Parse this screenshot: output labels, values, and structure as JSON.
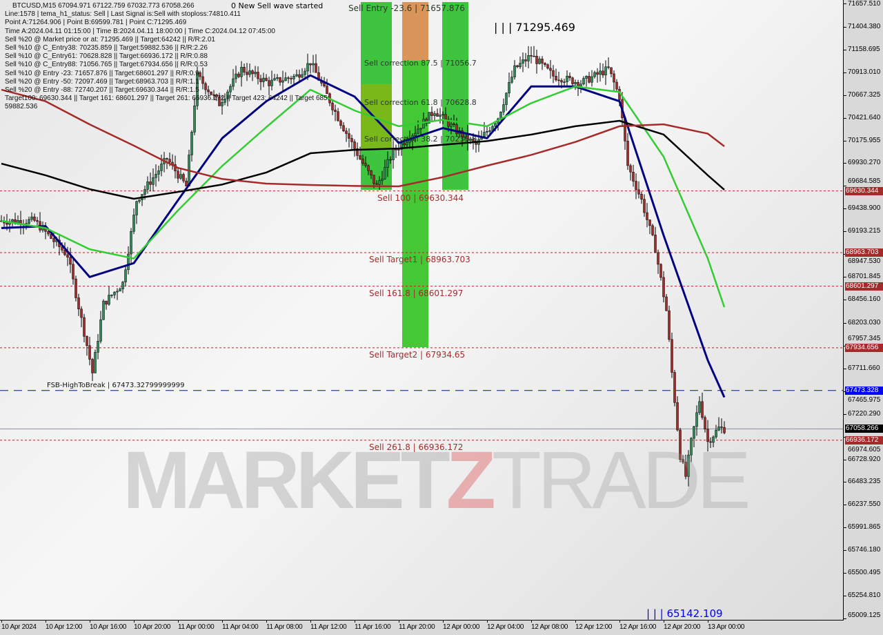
{
  "header": {
    "symbol_line": "BTCUSD,M15  67094.971 67122.759 67032.773 67058.266",
    "info_lines": [
      "Line:1578 | tema_h1_status: Sell | Last Signal is:Sell with stoploss:74810.411",
      "Point A:71264.906 | Point B:69599.781 | Point C:71295.469",
      "Time A:2024.04.11 01:15:00 | Time B:2024.04.11 18:00:00 | Time C:2024.04.12 07:45:00",
      "Sell %20 @ Market price or at: 71295.469 || Target:64242 || R/R:2.01",
      "Sell %10 @ C_Entry38: 70235.859 || Target:59882.536 || R/R:2.26",
      "Sell %10 @ C_Entry61: 70628.828 || Target:66936.172 || R/R:0.88",
      "Sell %10 @ C_Entry88: 71056.765 || Target:67934.656 || R/R:0.53",
      "Sell %10 @ Entry -23: 71657.876 || Target:68601.297 || R/R:0.9",
      "Sell %20 @ Entry -50: 72097.469 || Target:68963.703 || R/R:1.1",
      "Sell %20 @ Entry -88: 72740.207 || Target:69630.344 || R/R:1.5",
      "Target100: 69630.344 || Target 161: 68601.297 || Target 261: 66936.172 || Target 423: 64242 || Target 685: 59882.536"
    ],
    "wave_text": "0 New Sell wave started"
  },
  "watermark": {
    "part1": "MARKET",
    "part2": "Z",
    "part3": "TRADE"
  },
  "annotations": {
    "sell_entry": "Sell Entry -23.6 | 71657.876",
    "corr_875": "Sell correction 87.5 | 71056.7",
    "corr_618": "Sell correction 61.8 | 70628.8",
    "corr_382": "Sell correction 38.2 | 70235.8",
    "point_c": "| | | 71295.469",
    "low": "| | | 65142.109",
    "fsb": "FSB-HighToBreak | 67473.32799999999"
  },
  "colors": {
    "level": "#a52a2a",
    "fsb": "#0000ff",
    "tema": "#000080",
    "ma_green": "#33cc33",
    "ma_black": "#000000",
    "ma_brown": "#a52a2a",
    "bull": "#2e8b57",
    "bear": "#a52a2a",
    "zone_green": "#33c233",
    "zone_orange": "#d9955a"
  },
  "chart_data": {
    "type": "candlestick",
    "title": "BTCUSD,M15",
    "ylim": [
      65009.125,
      71657.51
    ],
    "y_ticks": [
      "71657.510",
      "71404.380",
      "71158.695",
      "70913.010",
      "70667.325",
      "70421.640",
      "70175.955",
      "69930.270",
      "69684.585",
      "69438.900",
      "69193.215",
      "68947.530",
      "68701.845",
      "68456.160",
      "68203.030",
      "67957.345",
      "67711.660",
      "67465.975",
      "67220.290",
      "66974.605",
      "66728.920",
      "66483.235",
      "66237.550",
      "65991.865",
      "65746.180",
      "65500.495",
      "65254.810",
      "65009.125"
    ],
    "x_ticks": [
      "10 Apr 2024",
      "10 Apr 12:00",
      "10 Apr 16:00",
      "10 Apr 20:00",
      "11 Apr 00:00",
      "11 Apr 04:00",
      "11 Apr 08:00",
      "11 Apr 12:00",
      "11 Apr 16:00",
      "11 Apr 20:00",
      "12 Apr 00:00",
      "12 Apr 04:00",
      "12 Apr 08:00",
      "12 Apr 12:00",
      "12 Apr 16:00",
      "12 Apr 20:00",
      "13 Apr 00:00"
    ],
    "x_tick_times": [
      "2024-04-10 08:00",
      "2024-04-10 12:00",
      "2024-04-10 16:00",
      "2024-04-10 20:00",
      "2024-04-11 00:00",
      "2024-04-11 04:00",
      "2024-04-11 08:00",
      "2024-04-11 12:00",
      "2024-04-11 16:00",
      "2024-04-11 20:00",
      "2024-04-12 00:00",
      "2024-04-12 04:00",
      "2024-04-12 08:00",
      "2024-04-12 12:00",
      "2024-04-12 16:00",
      "2024-04-12 20:00",
      "2024-04-13 00:00"
    ],
    "price": {
      "x": [
        "2024-04-10 08:00",
        "2024-04-10 11:00",
        "2024-04-10 14:00",
        "2024-04-10 15:45",
        "2024-04-10 16:15",
        "2024-04-10 17:15",
        "2024-04-10 19:00",
        "2024-04-10 20:15",
        "2024-04-10 23:00",
        "2024-04-11 00:45",
        "2024-04-11 01:45",
        "2024-04-11 03:45",
        "2024-04-11 05:45",
        "2024-04-11 08:15",
        "2024-04-11 10:45",
        "2024-04-11 12:00",
        "2024-04-11 14:30",
        "2024-04-11 16:30",
        "2024-04-11 18:00",
        "2024-04-11 19:30",
        "2024-04-11 21:30",
        "2024-04-11 23:15",
        "2024-04-12 01:15",
        "2024-04-12 03:00",
        "2024-04-12 05:00",
        "2024-04-12 06:30",
        "2024-04-12 08:00",
        "2024-04-12 10:00",
        "2024-04-12 12:30",
        "2024-04-12 15:00",
        "2024-04-12 16:00",
        "2024-04-12 16:45",
        "2024-04-12 18:00",
        "2024-04-12 19:15",
        "2024-04-12 20:15",
        "2024-04-12 20:45",
        "2024-04-12 21:30",
        "2024-04-12 22:00",
        "2024-04-12 22:30",
        "2024-04-12 23:15",
        "2024-04-13 00:00",
        "2024-04-13 01:00",
        "2024-04-13 01:30"
      ],
      "y": [
        69307,
        69307,
        68934,
        67964,
        67665,
        68411,
        68635,
        69530,
        69979,
        69680,
        70874,
        70575,
        70949,
        70799,
        70874,
        71023,
        70426,
        69979,
        69680,
        70053,
        70277,
        70501,
        70277,
        70128,
        70426,
        70949,
        71098,
        70874,
        70799,
        70949,
        70650,
        69904,
        69530,
        69008,
        68337,
        67665,
        66770,
        66546,
        66919,
        67367,
        66919,
        67068,
        67058
      ]
    },
    "series": [
      {
        "key": "tema",
        "x_ref": "ma_x",
        "values": [
          69230,
          69250,
          68700,
          68850,
          69530,
          70200,
          70600,
          70880,
          70650,
          70150,
          70310,
          70200,
          70760,
          70760,
          70600,
          69150,
          67800,
          67400
        ]
      },
      {
        "key": "ma_green",
        "x_ref": "ma_x",
        "values": [
          69307,
          69230,
          69000,
          68900,
          69420,
          69900,
          70320,
          70725,
          70500,
          70330,
          70400,
          70330,
          70580,
          70760,
          70700,
          70000,
          68900,
          68374
        ]
      },
      {
        "key": "ma_black",
        "x_ref": "ma_x",
        "values": [
          69926,
          69800,
          69650,
          69546,
          69620,
          69700,
          69830,
          70038,
          70075,
          70090,
          70130,
          70170,
          70240,
          70330,
          70389,
          70240,
          69800,
          69643
        ]
      },
      {
        "key": "ma_brown",
        "x_ref": "ma_x",
        "values": [
          70725,
          70600,
          70350,
          70120,
          69880,
          69760,
          69710,
          69695,
          69685,
          69680,
          69780,
          69904,
          70020,
          70160,
          70330,
          70351,
          70250,
          70113
        ]
      }
    ],
    "ma_x": [
      "2024-04-10 08:00",
      "2024-04-10 12:00",
      "2024-04-10 16:00",
      "2024-04-10 20:00",
      "2024-04-11 00:00",
      "2024-04-11 04:00",
      "2024-04-11 08:00",
      "2024-04-11 12:00",
      "2024-04-11 16:00",
      "2024-04-11 20:00",
      "2024-04-12 00:00",
      "2024-04-12 04:00",
      "2024-04-12 08:00",
      "2024-04-12 12:00",
      "2024-04-12 16:00",
      "2024-04-12 20:00",
      "2024-04-13 00:00",
      "2024-04-13 01:30"
    ],
    "levels": [
      {
        "price": 69630.344,
        "label": "Sell 100 | 69630.344",
        "badge": "69630.344",
        "style": "dotted",
        "color": "#a52a2a"
      },
      {
        "price": 68963.703,
        "label": "Sell Target1 | 68963.703",
        "badge": "68963.703",
        "style": "dotted",
        "color": "#a52a2a"
      },
      {
        "price": 68601.297,
        "label": "Sell 161.8 | 68601.297",
        "badge": "68601.297",
        "style": "dotted",
        "color": "#a52a2a"
      },
      {
        "price": 67934.656,
        "label": "Sell Target2 | 67934.65",
        "badge": "67934.656",
        "style": "dotted",
        "color": "#a52a2a"
      },
      {
        "price": 67473.328,
        "label": "",
        "badge": "67473.328",
        "style": "dashed",
        "color": "#0000ff"
      },
      {
        "price": 67058.266,
        "label": "",
        "badge": "67058.266",
        "style": "solid",
        "color": "#000000"
      },
      {
        "price": 66936.172,
        "label": "Sell  261.8 | 66936.172",
        "badge": "66936.172",
        "style": "dotted",
        "color": "#a52a2a"
      }
    ]
  }
}
